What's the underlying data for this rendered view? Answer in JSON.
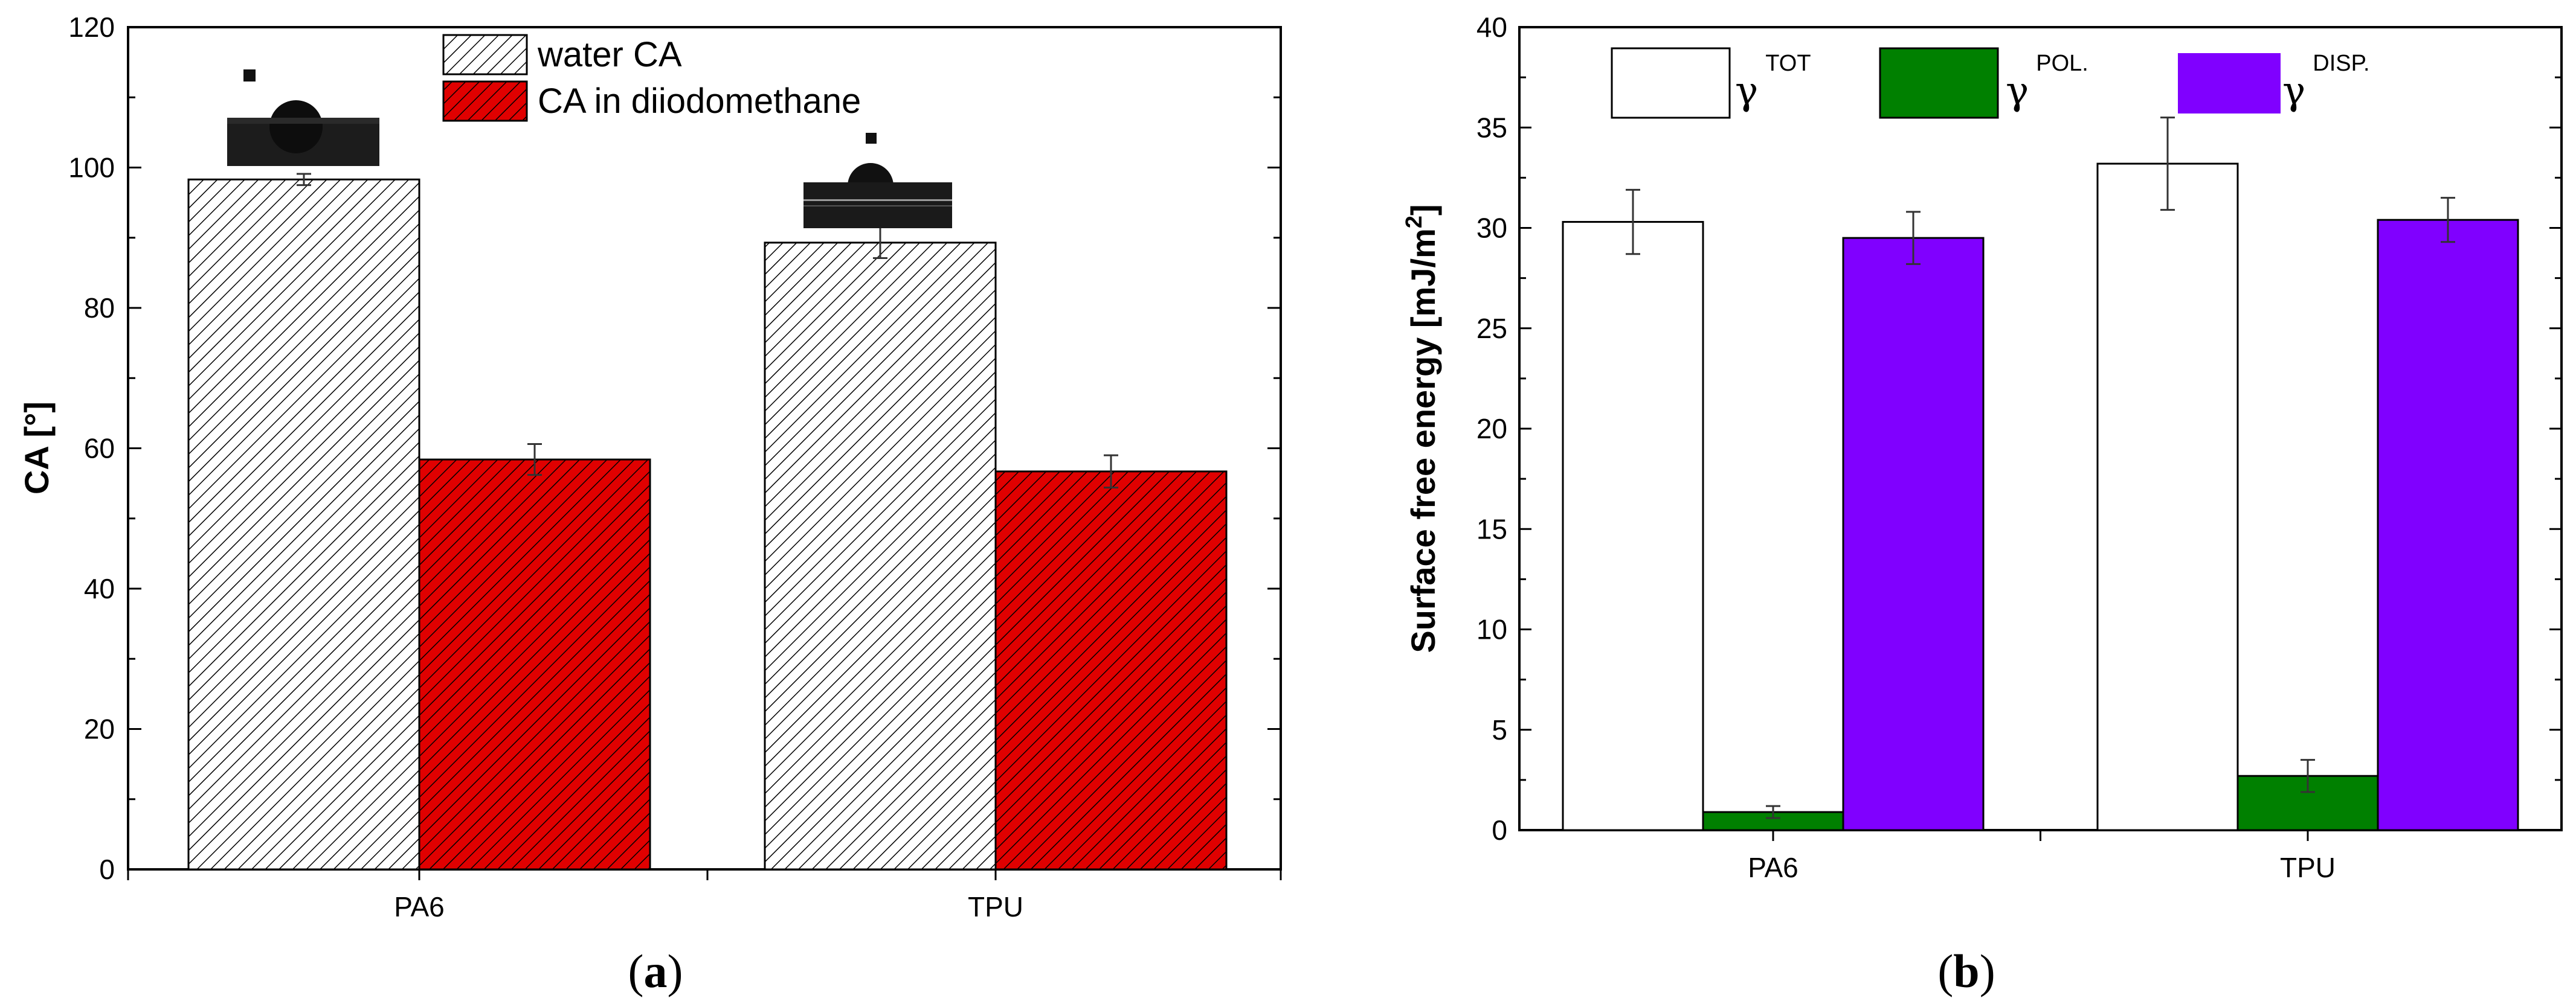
{
  "chart_data": [
    {
      "type": "bar",
      "panel_label": "a",
      "categories": [
        "PA6",
        "TPU"
      ],
      "series": [
        {
          "name": "water CA",
          "values": [
            98.3,
            89.3
          ],
          "errors": [
            0.8,
            2.2
          ],
          "fill": "hatched-white",
          "color": "#ffffff"
        },
        {
          "name": "CA in diiodomethane",
          "values": [
            58.4,
            56.7
          ],
          "errors": [
            2.2,
            2.3
          ],
          "fill": "hatched-red",
          "color": "#e00000"
        }
      ],
      "ylabel": "CA [°]",
      "xlabel": "",
      "ylim": [
        0,
        120
      ],
      "yticks": [
        "0",
        "20",
        "40",
        "60",
        "80",
        "100",
        "120"
      ],
      "legend_position": "top-center",
      "grid": false
    },
    {
      "type": "bar",
      "panel_label": "b",
      "categories": [
        "PA6",
        "TPU"
      ],
      "series": [
        {
          "name": "γ",
          "sup": "TOT",
          "values": [
            30.3,
            33.2
          ],
          "errors": [
            1.6,
            2.3
          ],
          "color": "#ffffff"
        },
        {
          "name": "γ",
          "sup": "POL.",
          "values": [
            0.9,
            2.7
          ],
          "errors": [
            0.3,
            0.8
          ],
          "color": "#008000"
        },
        {
          "name": "γ",
          "sup": "DISP.",
          "values": [
            29.5,
            30.4
          ],
          "errors": [
            1.3,
            1.1
          ],
          "color": "#8000ff"
        }
      ],
      "ylabel": "Surface free energy [mJ/m",
      "ylabel_sup": "2",
      "ylabel_end": "]",
      "xlabel": "",
      "ylim": [
        0,
        40
      ],
      "yticks": [
        "0",
        "5",
        "10",
        "15",
        "20",
        "25",
        "30",
        "35",
        "40"
      ],
      "legend_position": "top",
      "grid": false
    }
  ]
}
